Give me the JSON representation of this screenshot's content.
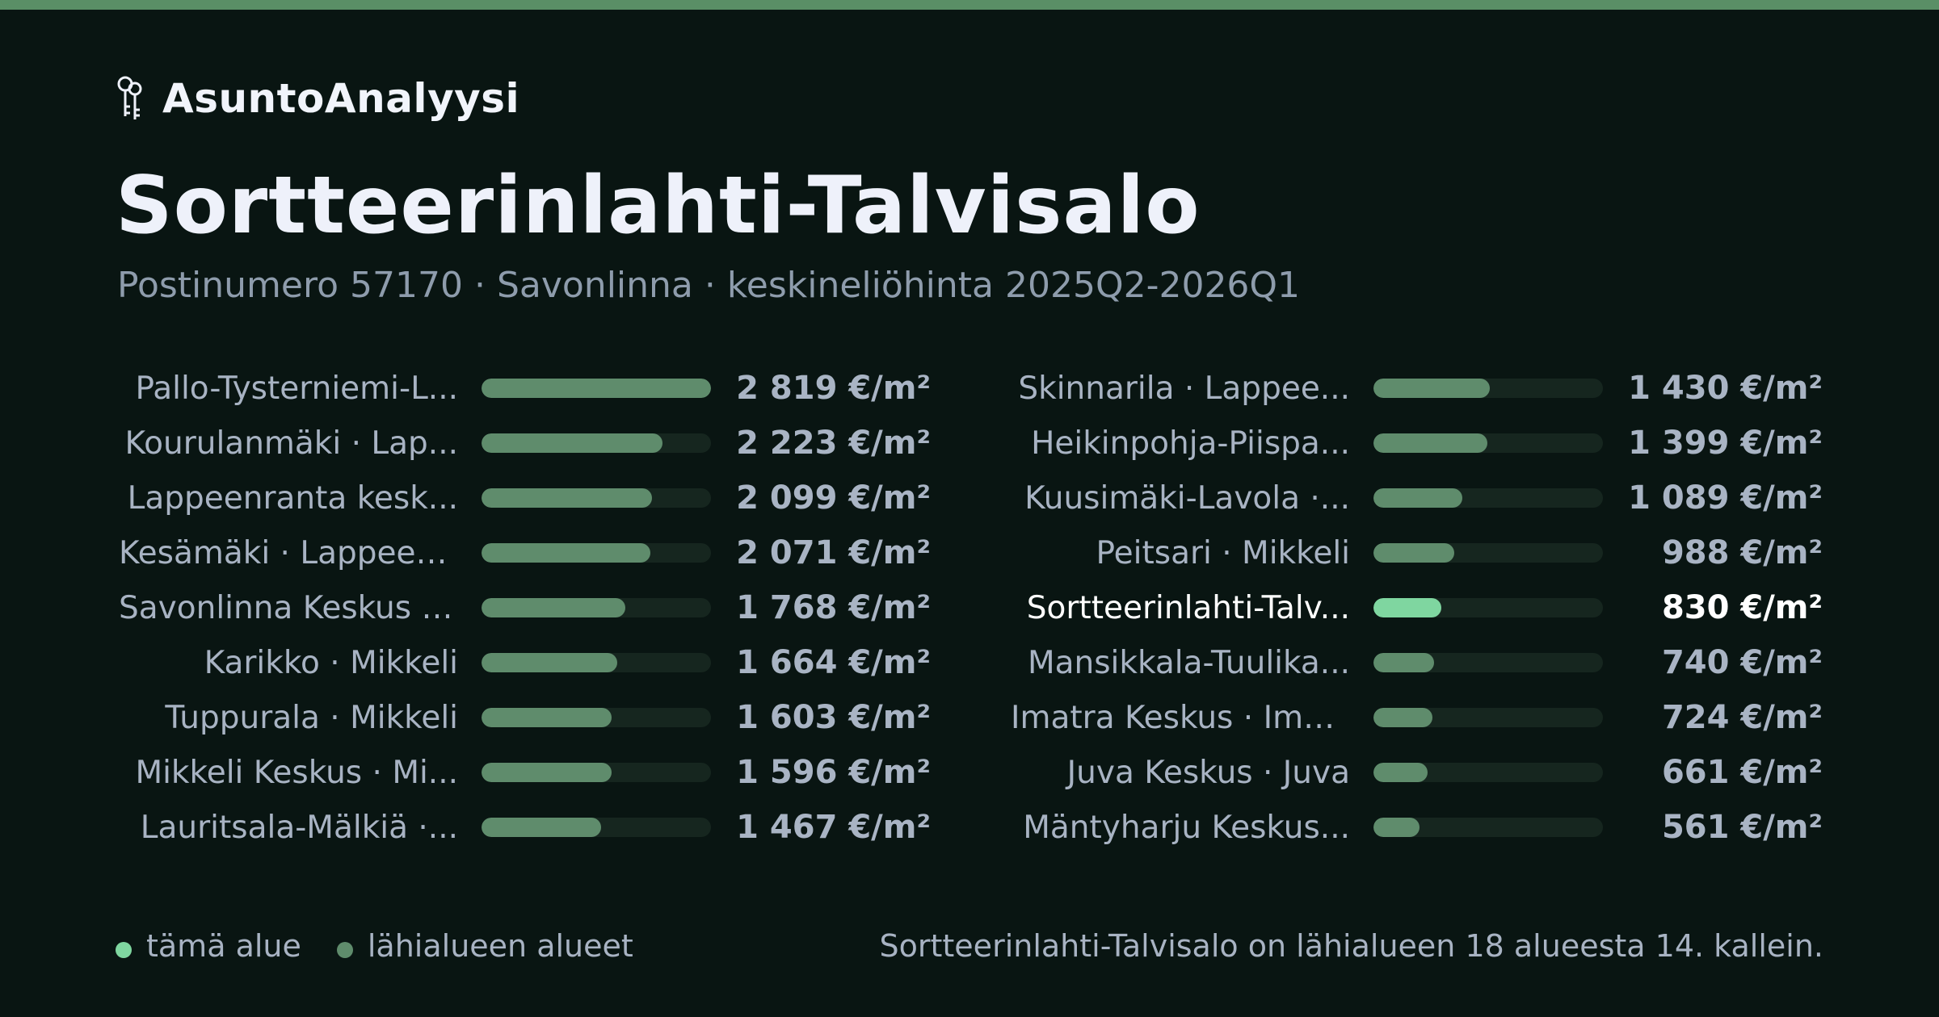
{
  "brand": {
    "name": "AsuntoAnalyysi",
    "icon": "keys-icon"
  },
  "title": "Sortteerinlahti-Talvisalo",
  "subtitle": "Postinumero 57170 · Savonlinna · keskineliöhinta 2025Q2-2026Q1",
  "colors": {
    "accent": "#7fd6a0",
    "bar": "#5f8c6c",
    "track": "#16261f",
    "background": "#091512",
    "topbar": "#5a8f66"
  },
  "chart_data": {
    "type": "bar",
    "orientation": "horizontal",
    "unit": "€/m²",
    "xlim": [
      0,
      2819
    ],
    "categories": [
      "Pallo-Tysterniemi-L...",
      "Kourulanmäki · Lap...",
      "Lappeenranta kesk...",
      "Kesämäki · Lappeen...",
      "Savonlinna Keskus ·...",
      "Karikko · Mikkeli",
      "Tuppurala · Mikkeli",
      "Mikkeli Keskus · Mi...",
      "Lauritsala-Mälkiä ·...",
      "Skinnarila · Lappee...",
      "Heikinpohja-Piispa...",
      "Kuusimäki-Lavola ·...",
      "Peitsari · Mikkeli",
      "Sortteerinlahti-Talv...",
      "Mansikkala-Tuulika...",
      "Imatra Keskus · Ima...",
      "Juva Keskus · Juva",
      "Mäntyharju Keskus..."
    ],
    "values": [
      2819,
      2223,
      2099,
      2071,
      1768,
      1664,
      1603,
      1596,
      1467,
      1430,
      1399,
      1089,
      988,
      830,
      740,
      724,
      661,
      561
    ],
    "value_labels": [
      "2 819 €/m²",
      "2 223 €/m²",
      "2 099 €/m²",
      "2 071 €/m²",
      "1 768 €/m²",
      "1 664 €/m²",
      "1 603 €/m²",
      "1 596 €/m²",
      "1 467 €/m²",
      "1 430 €/m²",
      "1 399 €/m²",
      "1 089 €/m²",
      "988 €/m²",
      "830 €/m²",
      "740 €/m²",
      "724 €/m²",
      "661 €/m²",
      "561 €/m²"
    ],
    "highlight_index": 13
  },
  "legend": {
    "this_area": "tämä alue",
    "nearby": "lähialueen alueet"
  },
  "note": "Sortteerinlahti-Talvisalo on lähialueen 18 alueesta 14. kallein."
}
